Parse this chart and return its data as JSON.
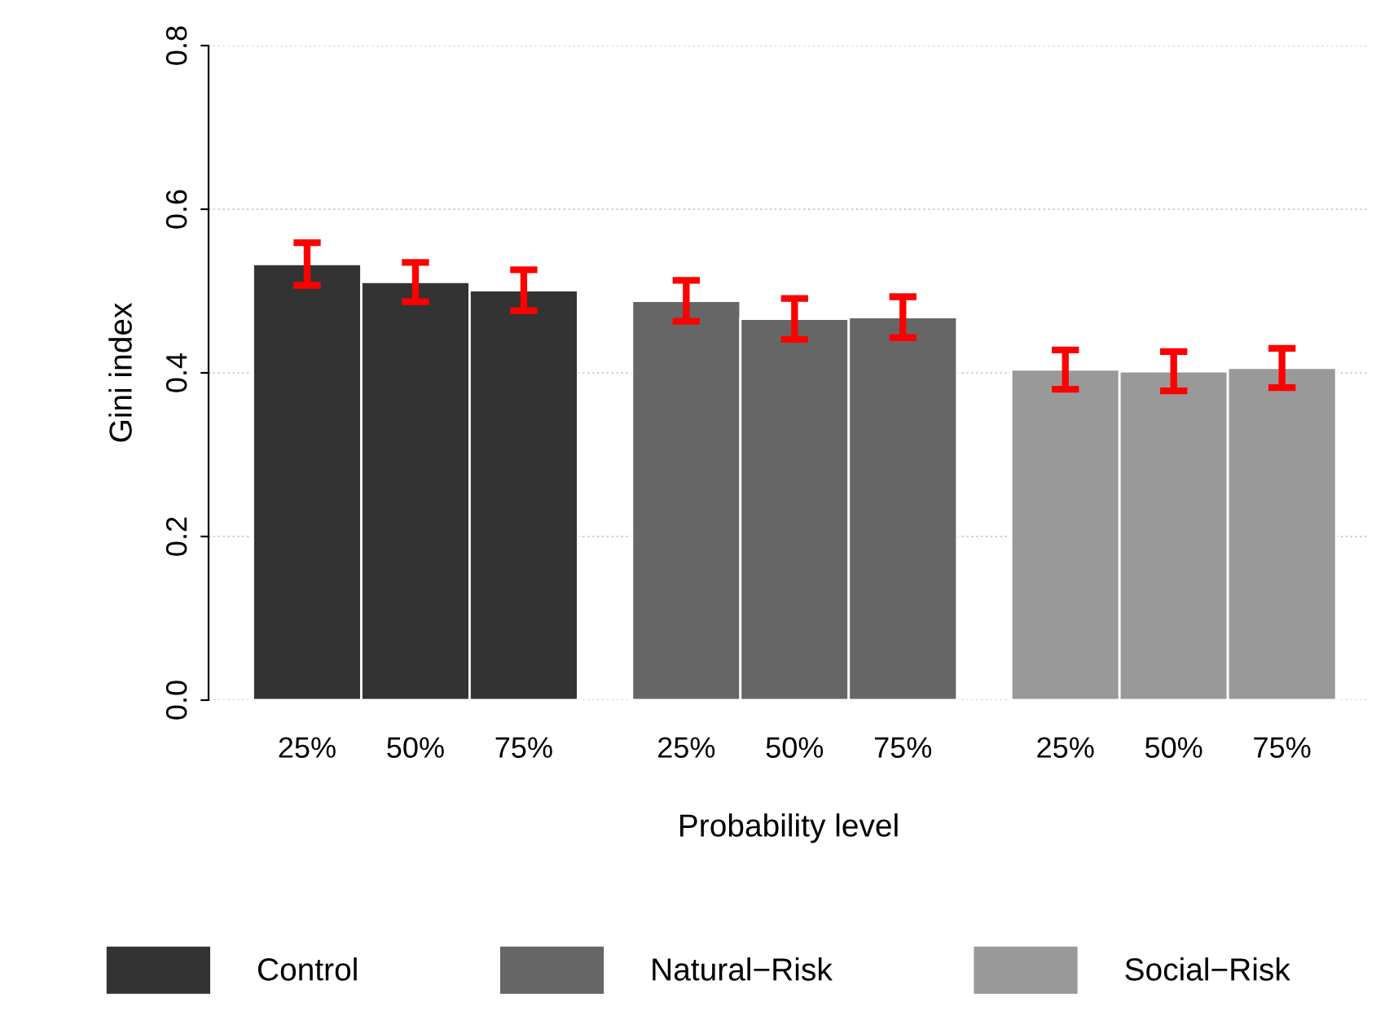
{
  "chart_data": {
    "type": "bar",
    "xlabel": "Probability level",
    "ylabel": "Gini index",
    "categories": [
      "25%",
      "50%",
      "75%",
      "25%",
      "50%",
      "75%",
      "25%",
      "50%",
      "75%"
    ],
    "series": [
      {
        "name": "Control",
        "color": "#333333",
        "values": [
          0.533,
          0.511,
          0.501,
          null,
          null,
          null,
          null,
          null,
          null
        ],
        "errors": [
          0.026,
          0.024,
          0.025,
          null,
          null,
          null,
          null,
          null,
          null
        ]
      },
      {
        "name": "Natural−Risk",
        "color": "#666666",
        "values": [
          null,
          null,
          null,
          0.488,
          0.466,
          0.468,
          null,
          null,
          null
        ],
        "errors": [
          null,
          null,
          null,
          0.025,
          0.025,
          0.025,
          null,
          null,
          null
        ]
      },
      {
        "name": "Social−Risk",
        "color": "#999999",
        "values": [
          null,
          null,
          null,
          null,
          null,
          null,
          0.404,
          0.402,
          0.406
        ],
        "errors": [
          null,
          null,
          null,
          null,
          null,
          null,
          0.024,
          0.024,
          0.024
        ]
      }
    ],
    "ylim": [
      0,
      0.8
    ],
    "yticks": [
      {
        "value": 0,
        "label": "0.0"
      },
      0.2,
      0.4,
      0.6,
      0.8
    ],
    "grid": "y",
    "legend": "bottom"
  }
}
